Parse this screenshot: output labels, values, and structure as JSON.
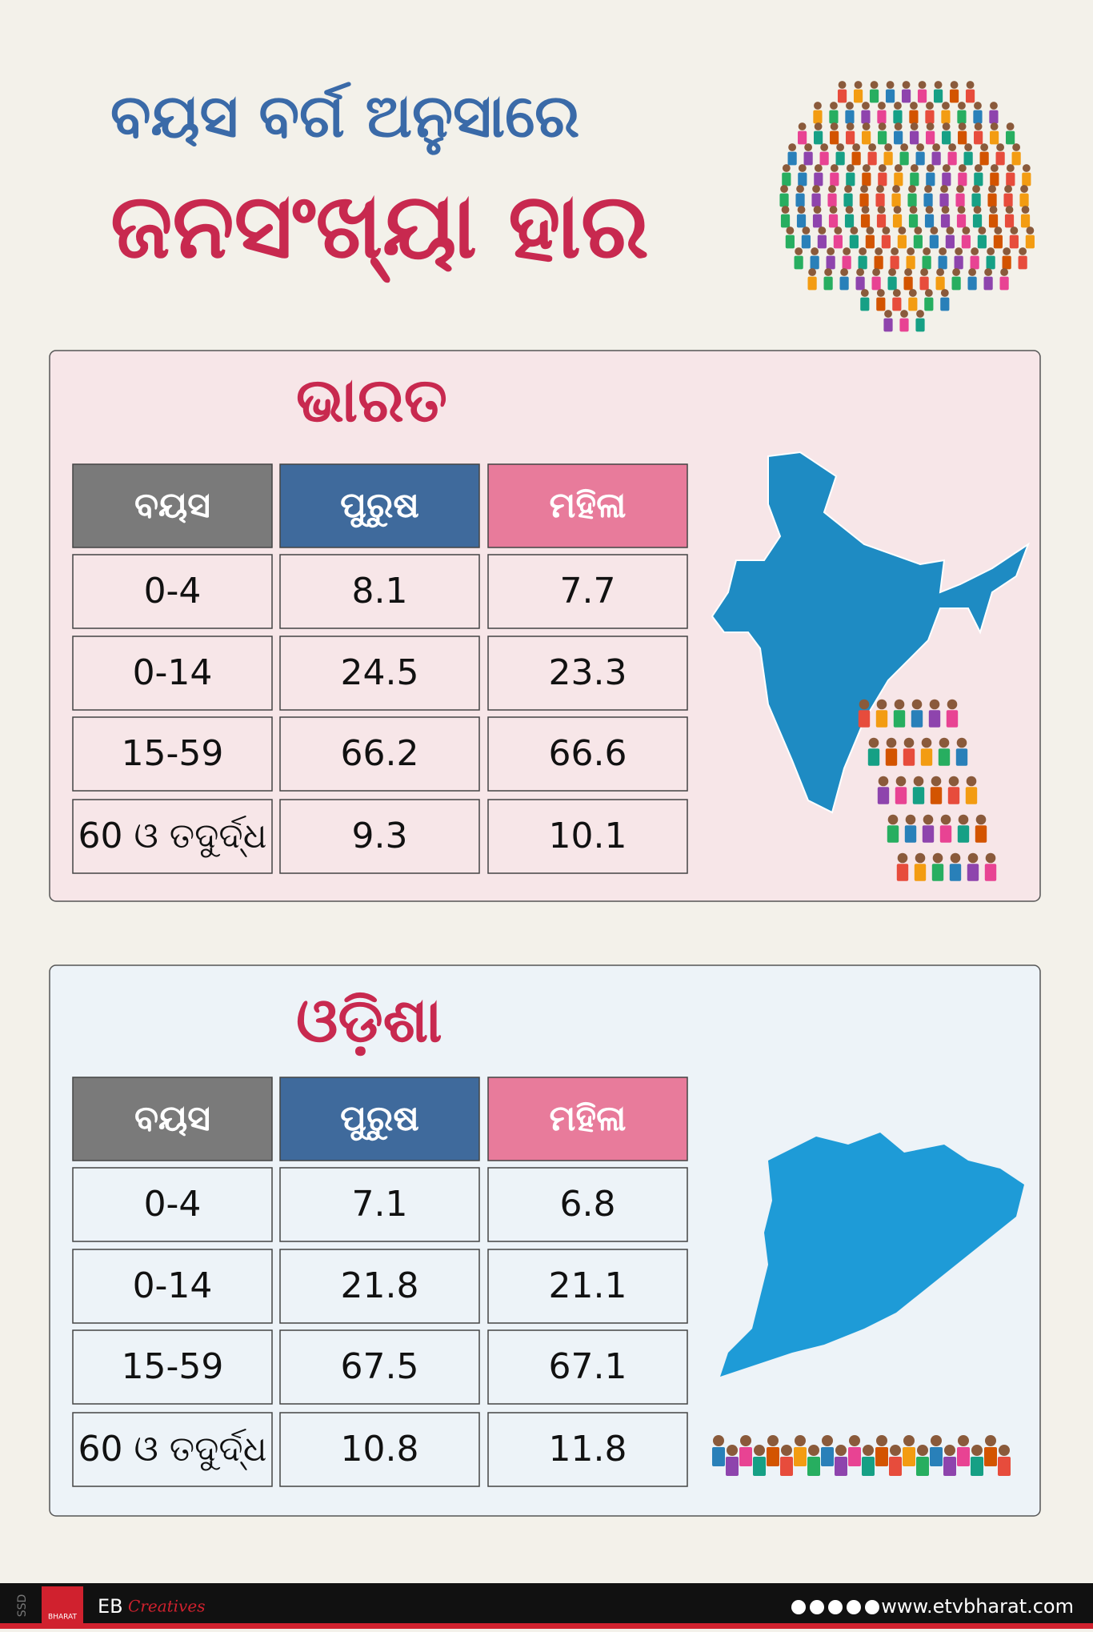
{
  "header": {
    "line1": "ବୟସ ବର୍ଗ ଅନୁସାରେ",
    "line2": "ଜନସଂଖ୍ୟା ହାର"
  },
  "sections": [
    {
      "title": "ଭାରତ",
      "table": {
        "columns": [
          "ବୟସ",
          "ପୁରୁଷ",
          "ମହିଳା"
        ],
        "rows": [
          [
            "0-4",
            8.1,
            7.7
          ],
          [
            "0-14",
            24.5,
            23.3
          ],
          [
            "15-59",
            66.2,
            66.6
          ],
          [
            "60 ଓ ତଦୁର୍ଦ୍ଧ",
            9.3,
            10.1
          ]
        ]
      }
    },
    {
      "title": "ଓଡ଼ିଶା",
      "table": {
        "columns": [
          "ବୟସ",
          "ପୁରୁଷ",
          "ମହିଳା"
        ],
        "rows": [
          [
            "0-4",
            7.1,
            6.8
          ],
          [
            "0-14",
            21.8,
            21.1
          ],
          [
            "15-59",
            67.5,
            67.1
          ],
          [
            "60 ଓ ତଦୁର୍ଦ୍ଧ",
            10.8,
            11.8
          ]
        ]
      }
    }
  ],
  "footer": {
    "side": "SSD",
    "logo_sub": "BHARAT",
    "brand": "EB",
    "brand_sub": "Creatives",
    "url": "www.etvbharat.com"
  }
}
